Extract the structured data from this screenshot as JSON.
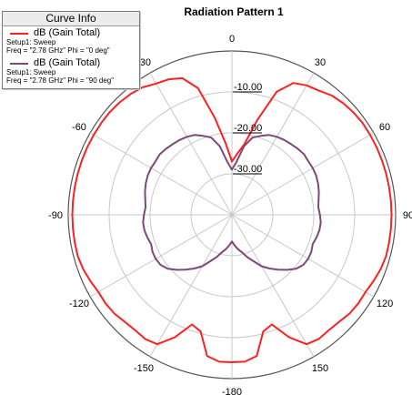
{
  "chart_data": {
    "type": "polar",
    "title": "Radiation Pattern 1",
    "rlim": [
      -40,
      0
    ],
    "radial_ticks": [
      -30,
      -20,
      -10,
      0
    ],
    "radial_tick_labels": [
      "-30.00",
      "-20.00",
      "-10.00"
    ],
    "angle_ticks": [
      0,
      30,
      60,
      90,
      120,
      150,
      -180,
      -150,
      -120,
      -90,
      -60,
      -30
    ],
    "angle_tick_labels": [
      "0",
      "30",
      "60",
      "90",
      "120",
      "150",
      "-180",
      "-150",
      "-120",
      "-90",
      "-60",
      "-30"
    ],
    "grid": true,
    "legend_position": "top-left",
    "series": [
      {
        "name": "dB (Gain Total)",
        "setup": "Setup1: Sweep",
        "freq": "Freq = \"2.78 GHz\" Phi = \"0 deg\"",
        "color": "#ff2020",
        "theta": [
          0,
          5,
          10,
          15,
          20,
          25,
          30,
          35,
          40,
          45,
          50,
          55,
          60,
          65,
          70,
          75,
          80,
          85,
          90,
          95,
          100,
          105,
          110,
          115,
          120,
          125,
          130,
          135,
          140,
          145,
          150,
          155,
          160,
          165,
          170,
          175,
          180,
          185,
          190,
          195,
          200,
          205,
          210,
          215,
          220,
          225,
          230,
          235,
          240,
          245,
          250,
          255,
          260,
          265,
          270,
          275,
          280,
          285,
          290,
          295,
          300,
          305,
          310,
          315,
          320,
          325,
          330,
          335,
          340,
          345,
          350,
          355
        ],
        "r": [
          -27,
          -25,
          -22.5,
          -16,
          -8,
          -4.5,
          -3.5,
          -3,
          -2,
          -1.5,
          -1.2,
          -1,
          -1,
          -1,
          -1,
          -1,
          -1,
          -1,
          -1,
          -1,
          -1,
          -1,
          -1.3,
          -1.8,
          -2.3,
          -2.3,
          -2.5,
          -3,
          -3.2,
          -3,
          -3.5,
          -7,
          -11.5,
          -10.5,
          -5,
          -4,
          -4,
          -4,
          -5,
          -10.5,
          -11.5,
          -7,
          -3.5,
          -3,
          -3.2,
          -3,
          -2.5,
          -2.3,
          -2.3,
          -1.8,
          -1.3,
          -1,
          -1,
          -1,
          -1,
          -1,
          -1,
          -1,
          -1,
          -1,
          -1,
          -1,
          -1,
          -1.2,
          -1.5,
          -2,
          -3,
          -3.5,
          -4.5,
          -8,
          -16,
          -22.5
        ]
      },
      {
        "name": "dB (Gain Total)",
        "setup": "Setup1: Sweep",
        "freq": "Freq = \"2.78 GHz\" Phi = \"90 deg\"",
        "color": "#7a4a78",
        "theta": [
          0,
          5,
          10,
          15,
          20,
          25,
          30,
          35,
          40,
          45,
          50,
          55,
          60,
          65,
          70,
          75,
          80,
          85,
          90,
          95,
          100,
          105,
          110,
          115,
          120,
          125,
          130,
          135,
          140,
          145,
          150,
          155,
          160,
          165,
          170,
          175,
          180,
          185,
          190,
          195,
          200,
          205,
          210,
          215,
          220,
          225,
          230,
          235,
          240,
          245,
          250,
          255,
          260,
          265,
          270,
          275,
          280,
          285,
          290,
          295,
          300,
          305,
          310,
          315,
          320,
          325,
          330,
          335,
          340,
          345,
          350,
          355
        ],
        "r": [
          -29,
          -27,
          -23,
          -20.5,
          -19.5,
          -18.5,
          -18,
          -17.7,
          -17.5,
          -17.2,
          -17,
          -17.2,
          -17.2,
          -17.3,
          -17.6,
          -18,
          -18.5,
          -18.8,
          -18.5,
          -18.2,
          -18.3,
          -18.6,
          -19,
          -18.6,
          -18.5,
          -18.7,
          -19.5,
          -21,
          -22.5,
          -24,
          -25.5,
          -27.5,
          -29,
          -30.5,
          -31.5,
          -32.5,
          -33.5,
          -32.5,
          -31.5,
          -30.5,
          -29,
          -27.5,
          -25.5,
          -24,
          -22.5,
          -21,
          -19.5,
          -18.7,
          -18.5,
          -18.6,
          -19,
          -18.6,
          -18.3,
          -18.2,
          -18.5,
          -18.8,
          -18.5,
          -18,
          -17.6,
          -17.3,
          -17.2,
          -17.2,
          -17,
          -17.2,
          -17.5,
          -17.7,
          -18,
          -18.5,
          -19.5,
          -20.5,
          -23,
          -27
        ]
      }
    ]
  },
  "legend": {
    "title": "Curve Info"
  }
}
